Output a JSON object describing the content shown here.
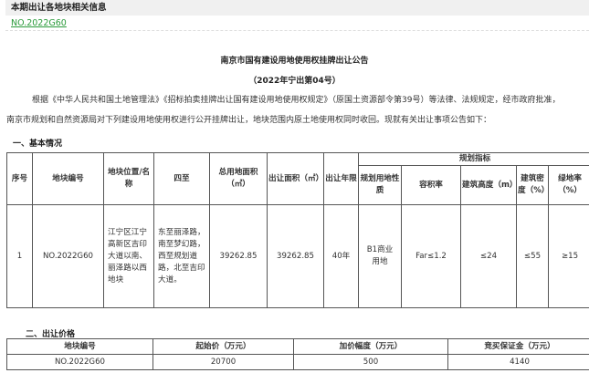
{
  "header": {
    "title": "本期出让各地块相关信息",
    "parcel_link": "NO.2022G60"
  },
  "notice": {
    "title": "南京市国有建设用地使用权挂牌出让公告",
    "subtitle": "（2022年宁出第04号）",
    "para_line1": "根据《中华人民共和国土地管理法》《招标拍卖挂牌出让国有建设用地使用权规定》（原国土资源部令第39号）等法律、法规规定，经市政府批准，",
    "para_line2": "南京市规划和自然资源局对下列建设用地使用权进行公开挂牌出让，地块范围内原土地使用权同时收回。现就有关出让事项公告如下："
  },
  "section1": {
    "title": "一、基本情况",
    "headers": {
      "seq": "序号",
      "parcel_no": "地块编号",
      "location": "地块位置/名称",
      "boundaries": "四至",
      "total_area": "总用地面积（㎡）",
      "sale_area": "出让面积（㎡）",
      "term": "出让年限",
      "planning": "规划指标",
      "land_use": "规划用地性质",
      "far": "容积率",
      "height": "建筑高度（m）",
      "density": "建筑密度（%）",
      "green": "绿地率（%）"
    },
    "rows": [
      {
        "seq": "1",
        "parcel_no": "NO.2022G60",
        "location": "江宁区江宁高新区吉印大道以南、丽泽路以西地块",
        "boundaries": "东至丽泽路，南至梦幻路，西至规划道路，北至吉印大道。",
        "total_area": "39262.85",
        "sale_area": "39262.85",
        "term": "40年",
        "land_use": "B1商业用地",
        "far": "Far≤1.2",
        "height": "≤24",
        "density": "≤55",
        "green": "≥15"
      }
    ]
  },
  "section2": {
    "title": "二、出让价格",
    "headers": [
      "地块编号",
      "起始价（万元）",
      "加价幅度（万元）",
      "竞买保证金（万元）"
    ],
    "rows": [
      [
        "NO.2022G60",
        "20700",
        "500",
        "4140"
      ]
    ]
  }
}
